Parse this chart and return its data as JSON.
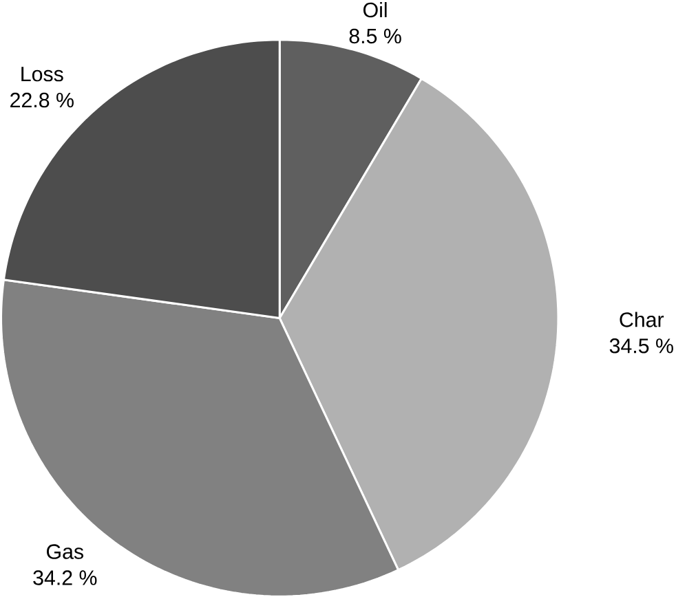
{
  "chart_data": {
    "type": "pie",
    "categories": [
      "Oil",
      "Char",
      "Gas",
      "Loss"
    ],
    "values": [
      8.5,
      34.5,
      34.2,
      22.8
    ],
    "value_labels": [
      "8.5 %",
      "34.5 %",
      "34.2 %",
      "22.8 %"
    ],
    "colors": [
      "#5f5f5f",
      "#b1b1b1",
      "#818181",
      "#4d4d4d"
    ]
  }
}
